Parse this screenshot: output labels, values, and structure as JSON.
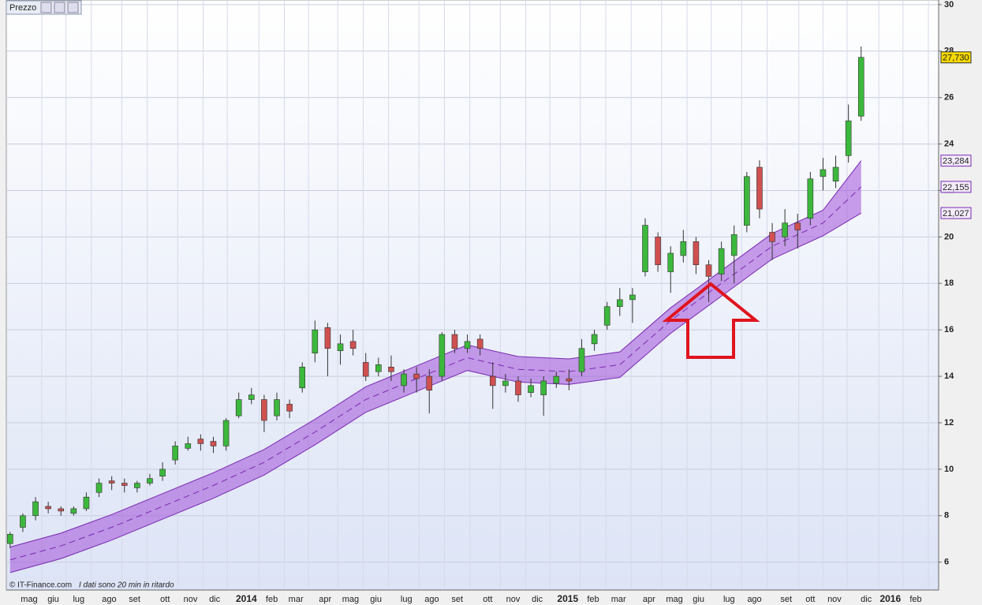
{
  "chart_data": {
    "type": "candlestick",
    "legend_title": "Prezzo",
    "footer": "© IT-Finance.com",
    "footer_note": "I dati sono 20 min in ritardo",
    "ylim": [
      4.8,
      30.2
    ],
    "yticks": [
      6,
      8,
      10,
      12,
      14,
      16,
      18,
      20,
      22,
      24,
      26,
      28,
      30
    ],
    "xlim": [
      -0.3,
      73.1
    ],
    "xticks": [
      {
        "value": 1.5,
        "label": "mag"
      },
      {
        "value": 3.4,
        "label": "giu"
      },
      {
        "value": 5.4,
        "label": "lug"
      },
      {
        "value": 7.8,
        "label": "ago"
      },
      {
        "value": 9.8,
        "label": "set"
      },
      {
        "value": 12.2,
        "label": "ott"
      },
      {
        "value": 14.2,
        "label": "nov"
      },
      {
        "value": 16.1,
        "label": "dic"
      },
      {
        "value": 18.6,
        "label": "2014"
      },
      {
        "value": 20.6,
        "label": "feb"
      },
      {
        "value": 22.5,
        "label": "mar"
      },
      {
        "value": 24.8,
        "label": "apr"
      },
      {
        "value": 26.8,
        "label": "mag"
      },
      {
        "value": 28.8,
        "label": "giu"
      },
      {
        "value": 31.2,
        "label": "lug"
      },
      {
        "value": 33.2,
        "label": "ago"
      },
      {
        "value": 35.2,
        "label": "set"
      },
      {
        "value": 37.6,
        "label": "ott"
      },
      {
        "value": 39.6,
        "label": "nov"
      },
      {
        "value": 41.5,
        "label": "dic"
      },
      {
        "value": 43.9,
        "label": "2015"
      },
      {
        "value": 45.9,
        "label": "feb"
      },
      {
        "value": 47.9,
        "label": "mar"
      },
      {
        "value": 50.3,
        "label": "apr"
      },
      {
        "value": 52.3,
        "label": "mag"
      },
      {
        "value": 54.2,
        "label": "giu"
      },
      {
        "value": 56.6,
        "label": "lug"
      },
      {
        "value": 58.6,
        "label": "ago"
      },
      {
        "value": 61.1,
        "label": "set"
      },
      {
        "value": 63,
        "label": "ott"
      },
      {
        "value": 64.9,
        "label": "nov"
      },
      {
        "value": 67.4,
        "label": "dic"
      },
      {
        "value": 69.3,
        "label": "2016"
      },
      {
        "value": 71.3,
        "label": "feb"
      }
    ],
    "grid": true,
    "up_color": "#3cb83c",
    "down_color": "#d05050",
    "last_label": "27,730",
    "last_label_color": "#f5d800",
    "open": [
      6.8,
      7.5,
      8.0,
      8.4,
      8.3,
      8.1,
      8.3,
      9.0,
      9.5,
      9.4,
      9.2,
      9.4,
      9.7,
      10.4,
      10.9,
      11.3,
      11.2,
      11.0,
      12.3,
      13.0,
      13.0,
      12.3,
      12.8,
      13.5,
      15.0,
      16.1,
      15.1,
      15.5,
      14.6,
      14.2,
      14.4,
      13.6,
      14.1,
      14.0,
      14.0,
      15.8,
      15.2,
      15.6,
      14.0,
      13.6,
      13.8,
      13.3,
      13.2,
      13.7,
      13.9,
      14.2,
      15.4,
      16.2,
      17.0,
      17.3,
      18.5,
      20.0,
      18.5,
      19.2,
      19.8,
      18.8,
      18.4,
      19.2,
      20.5,
      23.0,
      20.2,
      20.0,
      20.6,
      20.8,
      22.6,
      22.4,
      23.5,
      25.2
    ],
    "high": [
      7.3,
      8.1,
      8.8,
      8.6,
      8.4,
      8.4,
      9.0,
      9.6,
      9.7,
      9.6,
      9.5,
      9.8,
      10.3,
      11.2,
      11.4,
      11.5,
      11.4,
      12.2,
      13.3,
      13.5,
      13.2,
      13.3,
      13.0,
      14.6,
      16.4,
      16.3,
      15.8,
      16.0,
      15.0,
      14.8,
      14.9,
      14.3,
      14.4,
      14.3,
      15.9,
      16.0,
      15.8,
      15.8,
      14.6,
      14.1,
      14.0,
      13.9,
      14.0,
      14.2,
      14.3,
      15.6,
      16.0,
      17.2,
      17.8,
      17.8,
      20.8,
      20.2,
      19.6,
      20.3,
      20.0,
      19.0,
      19.8,
      20.5,
      22.8,
      23.3,
      20.6,
      21.2,
      21.0,
      22.8,
      23.4,
      23.5,
      25.7,
      28.2
    ],
    "low": [
      6.6,
      7.3,
      7.8,
      8.1,
      8.0,
      8.0,
      8.2,
      8.8,
      9.1,
      9.0,
      9.0,
      9.3,
      9.5,
      10.2,
      10.8,
      10.8,
      10.7,
      10.8,
      12.2,
      12.8,
      11.6,
      12.1,
      12.2,
      13.3,
      14.6,
      14.0,
      14.5,
      14.9,
      13.8,
      14.0,
      13.8,
      13.3,
      13.3,
      12.4,
      13.8,
      15.0,
      15.0,
      14.9,
      12.6,
      13.3,
      12.9,
      13.1,
      12.3,
      13.5,
      13.4,
      14.0,
      15.1,
      16.0,
      16.6,
      16.3,
      18.3,
      18.5,
      17.6,
      18.9,
      18.4,
      17.2,
      18.1,
      18.0,
      20.2,
      20.8,
      19.0,
      19.6,
      19.5,
      20.5,
      22.0,
      22.1,
      23.2,
      25.0
    ],
    "close": [
      7.2,
      8.0,
      8.6,
      8.3,
      8.2,
      8.3,
      8.8,
      9.4,
      9.4,
      9.3,
      9.4,
      9.6,
      10.0,
      11.0,
      11.1,
      11.1,
      11.0,
      12.1,
      13.0,
      13.2,
      12.1,
      13.0,
      12.5,
      14.4,
      16.0,
      15.2,
      15.4,
      15.2,
      14.0,
      14.5,
      14.2,
      14.1,
      13.9,
      13.4,
      15.8,
      15.2,
      15.5,
      15.2,
      13.6,
      13.8,
      13.2,
      13.6,
      13.8,
      14.0,
      13.8,
      15.2,
      15.8,
      17.0,
      17.3,
      17.5,
      20.5,
      18.8,
      19.3,
      19.8,
      18.8,
      18.3,
      19.5,
      20.1,
      22.6,
      21.2,
      19.8,
      20.6,
      20.3,
      22.5,
      22.9,
      23.0,
      25.0,
      27.73
    ],
    "band_x": [
      0,
      4,
      8,
      12,
      16,
      20,
      24,
      28,
      32,
      36,
      40,
      44,
      48,
      52,
      56,
      60,
      64,
      67
    ],
    "band_color": "#a050d8",
    "band": [
      {
        "values": [
          6.65,
          7.25,
          8.05,
          8.95,
          9.85,
          10.85,
          12.15,
          13.55,
          14.45,
          15.35,
          14.85,
          14.75,
          15.05,
          16.95,
          18.55,
          20.15,
          21.15,
          23.284
        ],
        "last_label": "23,284"
      },
      {
        "values": [
          6.1,
          6.7,
          7.5,
          8.4,
          9.3,
          10.3,
          11.6,
          13.0,
          13.9,
          14.8,
          14.3,
          14.2,
          14.5,
          16.4,
          18.0,
          19.6,
          20.6,
          22.155
        ],
        "last_label": "22,155",
        "dashed": true
      },
      {
        "values": [
          5.55,
          6.15,
          6.95,
          7.85,
          8.75,
          9.75,
          11.05,
          12.45,
          13.35,
          14.25,
          13.75,
          13.65,
          13.95,
          15.85,
          17.45,
          19.05,
          20.05,
          21.027
        ],
        "last_label": "21,027"
      }
    ]
  }
}
